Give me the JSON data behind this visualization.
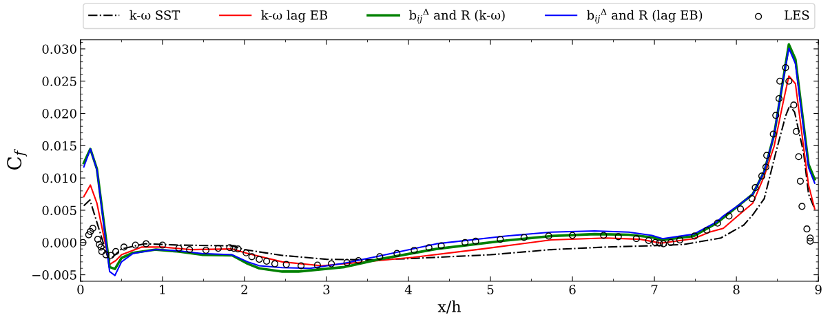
{
  "chart_data": {
    "type": "line",
    "xlabel": "x/h",
    "ylabel": "C$_{f}$",
    "xlim": [
      0,
      9
    ],
    "xticks": [
      0,
      1,
      2,
      3,
      4,
      5,
      6,
      7,
      8,
      9
    ],
    "ylim": [
      -0.006,
      0.0314
    ],
    "yticks": [
      {
        "value": -0.005,
        "label": "−0.005"
      },
      {
        "value": 0,
        "label": "0.000"
      },
      {
        "value": 0.005,
        "label": "0.005"
      },
      {
        "value": 0.01,
        "label": "0.010"
      },
      {
        "value": 0.015,
        "label": "0.015"
      },
      {
        "value": 0.02,
        "label": "0.020"
      },
      {
        "value": 0.025,
        "label": "0.025"
      },
      {
        "value": 0.03,
        "label": "0.030"
      }
    ],
    "grid": false,
    "legend": "top",
    "series": [
      {
        "name": "k-ω SST",
        "color": "#000000",
        "line_style": "dashdot",
        "marker": "none",
        "x": [
          0.04,
          0.115,
          0.345,
          0.5,
          0.78,
          1.2,
          1.76,
          1.85,
          2.0,
          2.46,
          3.0,
          3.5,
          4.0,
          5.0,
          5.74,
          6.41,
          6.97,
          7.36,
          7.81,
          8.09,
          8.2,
          8.34,
          8.48,
          8.6,
          8.65,
          8.71,
          8.82,
          8.88,
          8.955
        ],
        "values": [
          0.0057,
          0.0066,
          -0.0028,
          -0.001,
          -0.0002,
          -0.0004,
          -0.0005,
          -0.0005,
          -0.0011,
          -0.002,
          -0.0026,
          -0.0027,
          -0.0025,
          -0.0019,
          -0.0011,
          -0.0007,
          -0.0005,
          -0.0003,
          0.0007,
          0.0027,
          0.0043,
          0.0068,
          0.0139,
          0.0196,
          0.0212,
          0.0202,
          0.0139,
          0.0075,
          0.0052
        ]
      },
      {
        "name": "k-ω lag EB",
        "color": "#ff0000",
        "line_style": "solid",
        "marker": "none",
        "x": [
          0.04,
          0.12,
          0.2,
          0.355,
          0.43,
          0.5,
          0.75,
          1.0,
          1.34,
          1.85,
          2.04,
          2.46,
          2.94,
          3.39,
          4.06,
          4.9,
          5.74,
          6.41,
          6.83,
          7.08,
          7.48,
          7.67,
          7.84,
          8.06,
          8.2,
          8.34,
          8.46,
          8.57,
          8.64,
          8.72,
          8.88,
          8.955
        ],
        "values": [
          0.0071,
          0.0089,
          0.0061,
          -0.0034,
          -0.0028,
          -0.0019,
          -0.0007,
          -0.0007,
          -0.0011,
          -0.001,
          -0.0017,
          -0.003,
          -0.0036,
          -0.0031,
          -0.0023,
          -0.001,
          0.0004,
          0.0007,
          0.0005,
          -0.0001,
          0.0006,
          0.0016,
          0.0022,
          0.0046,
          0.0061,
          0.0103,
          0.0149,
          0.0217,
          0.0258,
          0.0246,
          0.0089,
          0.0052
        ]
      },
      {
        "name": "b$_{ij}$$^{Δ}$ and R (k-ω)",
        "color": "#008000",
        "line_style": "solid",
        "marker": "none",
        "x": [
          0.04,
          0.12,
          0.2,
          0.355,
          0.42,
          0.5,
          0.64,
          0.92,
          1.2,
          1.48,
          1.85,
          2.04,
          2.18,
          2.46,
          2.66,
          3.22,
          3.64,
          4.34,
          5.18,
          5.74,
          6.27,
          6.69,
          6.97,
          7.1,
          7.48,
          7.76,
          8.2,
          8.34,
          8.46,
          8.57,
          8.64,
          8.72,
          8.88,
          8.955
        ],
        "values": [
          0.0123,
          0.0145,
          0.0114,
          -0.0038,
          -0.0041,
          -0.0024,
          -0.0016,
          -0.0011,
          -0.0014,
          -0.0019,
          -0.002,
          -0.0033,
          -0.004,
          -0.0045,
          -0.0045,
          -0.0038,
          -0.0026,
          -0.001,
          0.0003,
          0.001,
          0.0013,
          0.0012,
          0.0008,
          0.0004,
          0.001,
          0.003,
          0.0075,
          0.011,
          0.0167,
          0.0252,
          0.0307,
          0.0284,
          0.0121,
          0.0098
        ]
      },
      {
        "name": "b$_{ij}$$^{Δ}$ and R (lag EB)",
        "color": "#0000ff",
        "line_style": "solid",
        "marker": "none",
        "x": [
          0.04,
          0.12,
          0.2,
          0.355,
          0.42,
          0.5,
          0.64,
          0.92,
          1.2,
          1.48,
          1.85,
          2.04,
          2.18,
          2.46,
          2.8,
          3.22,
          3.64,
          4.34,
          5.18,
          5.74,
          6.27,
          6.69,
          6.97,
          7.1,
          7.48,
          7.76,
          7.84,
          8.04,
          8.2,
          8.34,
          8.46,
          8.57,
          8.64,
          8.72,
          8.88,
          8.955
        ],
        "values": [
          0.0117,
          0.0145,
          0.0113,
          -0.0045,
          -0.0051,
          -0.003,
          -0.0017,
          -0.0011,
          -0.0013,
          -0.0017,
          -0.0019,
          -0.003,
          -0.0036,
          -0.0039,
          -0.004,
          -0.0032,
          -0.0021,
          -0.0002,
          0.001,
          0.0016,
          0.0018,
          0.0016,
          0.0011,
          0.0006,
          0.0013,
          0.0032,
          0.0041,
          0.0059,
          0.0075,
          0.011,
          0.0167,
          0.0252,
          0.0301,
          0.0277,
          0.0116,
          0.0092
        ]
      },
      {
        "name": "LES",
        "type": "scatter",
        "color": "#000000",
        "marker": "circle",
        "x": [
          0.03,
          0.1,
          0.12,
          0.15,
          0.21,
          0.23,
          0.25,
          0.26,
          0.31,
          0.37,
          0.43,
          0.53,
          0.67,
          0.8,
          1.0,
          1.2,
          1.33,
          1.53,
          1.68,
          1.82,
          1.87,
          1.92,
          2.02,
          2.09,
          2.18,
          2.27,
          2.37,
          2.51,
          2.69,
          2.89,
          3.06,
          3.25,
          3.39,
          3.65,
          3.86,
          4.07,
          4.25,
          4.4,
          4.69,
          4.82,
          5.12,
          5.41,
          5.71,
          6.0,
          6.38,
          6.56,
          6.78,
          6.93,
          7.01,
          7.06,
          7.11,
          7.2,
          7.31,
          7.49,
          7.64,
          7.77,
          7.91,
          8.05,
          8.19,
          8.23,
          8.31,
          8.36,
          8.37,
          8.45,
          8.48,
          8.52,
          8.53,
          8.6,
          8.64,
          8.7,
          8.73,
          8.76,
          8.78,
          8.8,
          8.86,
          8.9,
          8.9
        ],
        "values": [
          0.0,
          0.0012,
          0.0017,
          0.0022,
          0.0005,
          -0.0003,
          -0.0007,
          -0.0014,
          -0.0019,
          -0.002,
          -0.0014,
          -0.0007,
          -0.0004,
          -0.0002,
          -0.0004,
          -0.0009,
          -0.0011,
          -0.0012,
          -0.0009,
          -0.0008,
          -0.0009,
          -0.001,
          -0.0016,
          -0.0022,
          -0.0026,
          -0.0029,
          -0.0033,
          -0.0034,
          -0.0036,
          -0.0035,
          -0.0033,
          -0.0031,
          -0.0028,
          -0.0022,
          -0.0017,
          -0.0012,
          -0.0008,
          -0.0005,
          0.0,
          0.0002,
          0.0005,
          0.0008,
          0.001,
          0.0011,
          0.0011,
          0.0009,
          0.0006,
          0.0003,
          0.0,
          -0.0001,
          -0.0002,
          0.0,
          0.0004,
          0.001,
          0.0019,
          0.003,
          0.0041,
          0.0052,
          0.0068,
          0.0085,
          0.0103,
          0.0117,
          0.0135,
          0.0168,
          0.0197,
          0.0223,
          0.025,
          0.0271,
          0.025,
          0.0213,
          0.0172,
          0.0133,
          0.0095,
          0.0056,
          0.0021,
          0.0007,
          0.0002
        ]
      }
    ]
  }
}
